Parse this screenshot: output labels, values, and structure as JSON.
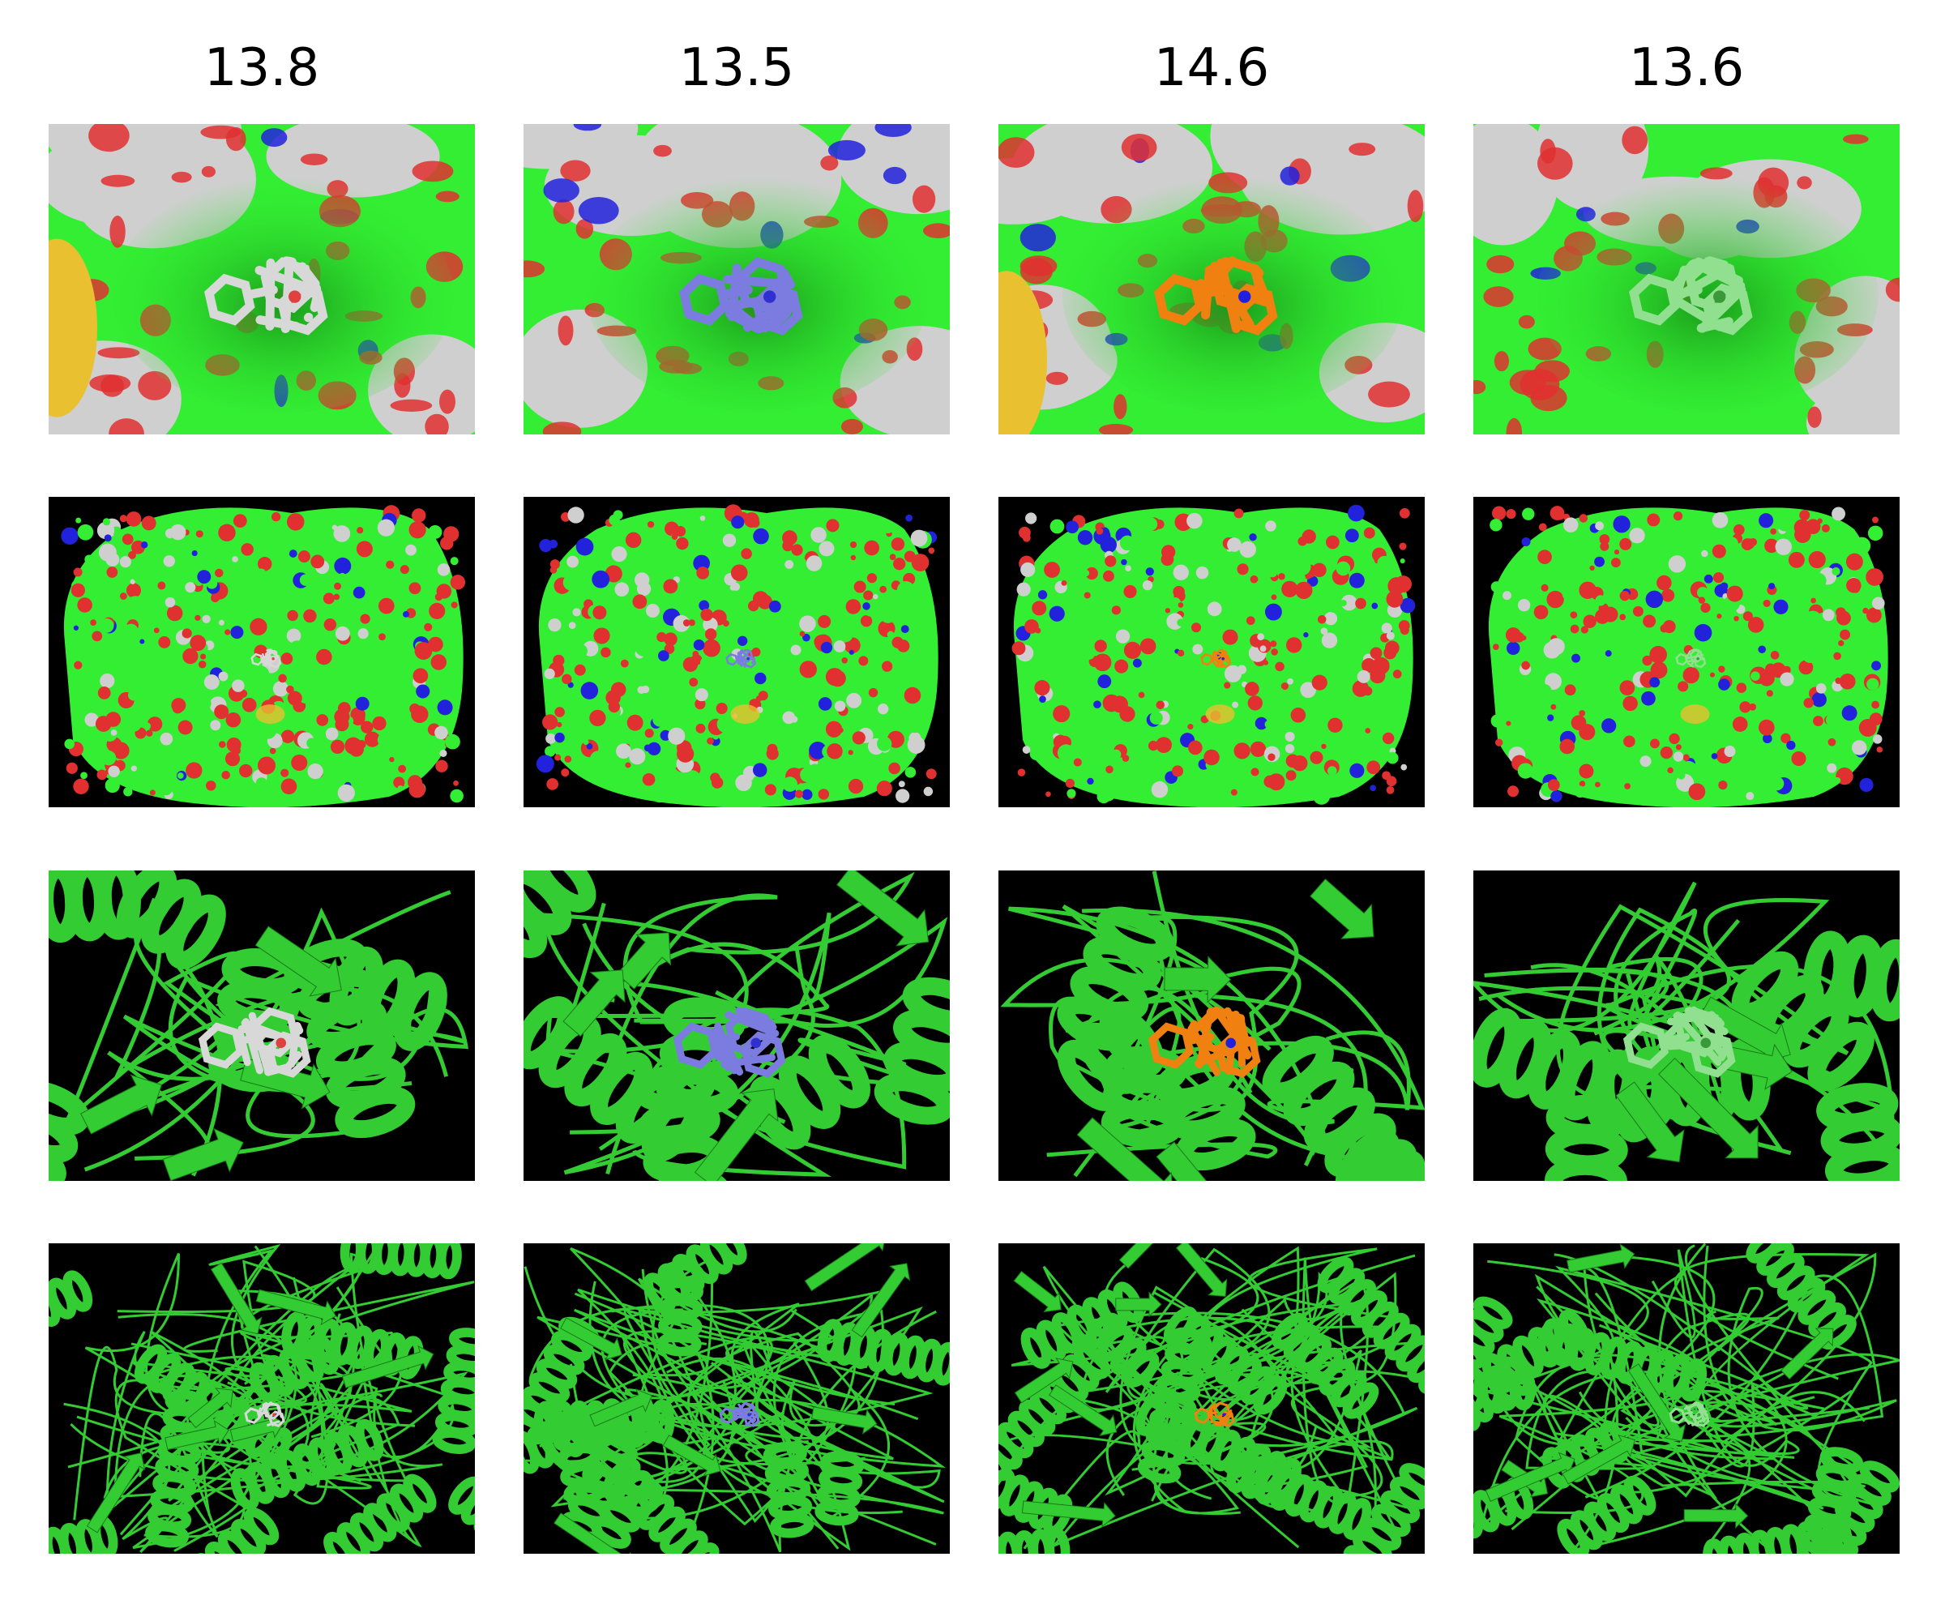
{
  "columns": [
    {
      "score": "13.8",
      "ligand_color": "#d8d8d8",
      "ligand_hetero": "#e04040"
    },
    {
      "score": "13.5",
      "ligand_color": "#7c7ce0",
      "ligand_hetero": "#3030d0"
    },
    {
      "score": "14.6",
      "ligand_color": "#f08010",
      "ligand_hetero": "#2020e0"
    },
    {
      "score": "13.6",
      "ligand_color": "#90e090",
      "ligand_hetero": "#3a9a3a"
    }
  ],
  "rows": [
    {
      "view": "surface-closeup"
    },
    {
      "view": "surface-overview"
    },
    {
      "view": "cartoon-closeup"
    },
    {
      "view": "cartoon-overview"
    }
  ],
  "colors": {
    "carbon_green": "#33ee33",
    "oxygen_red": "#e03030",
    "nitrogen_blue": "#2222dd",
    "sulfur_yellow": "#e8c030",
    "surface_grey": "#cfcfcf",
    "cartoon_green": "#33cc33",
    "background_black": "#000000"
  }
}
